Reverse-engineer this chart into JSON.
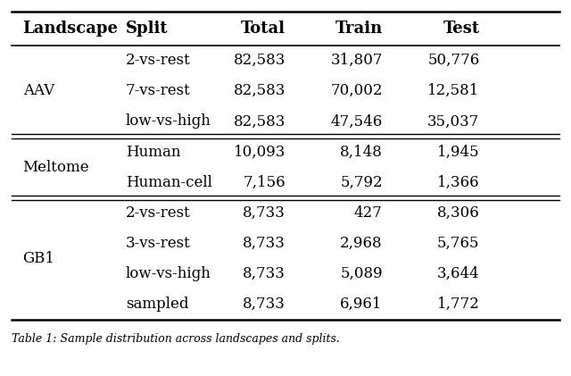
{
  "headers": [
    "Landscape",
    "Split",
    "Total",
    "Train",
    "Test"
  ],
  "groups": [
    {
      "landscape": "AAV",
      "rows": [
        [
          "2-vs-rest",
          "82,583",
          "31,807",
          "50,776"
        ],
        [
          "7-vs-rest",
          "82,583",
          "70,002",
          "12,581"
        ],
        [
          "low-vs-high",
          "82,583",
          "47,546",
          "35,037"
        ]
      ]
    },
    {
      "landscape": "Meltome",
      "rows": [
        [
          "Human",
          "10,093",
          "8,148",
          "1,945"
        ],
        [
          "Human-cell",
          "7,156",
          "5,792",
          "1,366"
        ]
      ]
    },
    {
      "landscape": "GB1",
      "rows": [
        [
          "2-vs-rest",
          "8,733",
          "427",
          "8,306"
        ],
        [
          "3-vs-rest",
          "8,733",
          "2,968",
          "5,765"
        ],
        [
          "low-vs-high",
          "8,733",
          "5,089",
          "3,644"
        ],
        [
          "sampled",
          "8,733",
          "6,961",
          "1,772"
        ]
      ]
    }
  ],
  "caption": "Table 1: Sample distribution across landscapes and splits.",
  "bg_color": "#ffffff",
  "text_color": "#000000",
  "header_fontsize": 13,
  "body_fontsize": 12,
  "caption_fontsize": 9,
  "figsize": [
    6.4,
    4.21
  ],
  "dpi": 100
}
